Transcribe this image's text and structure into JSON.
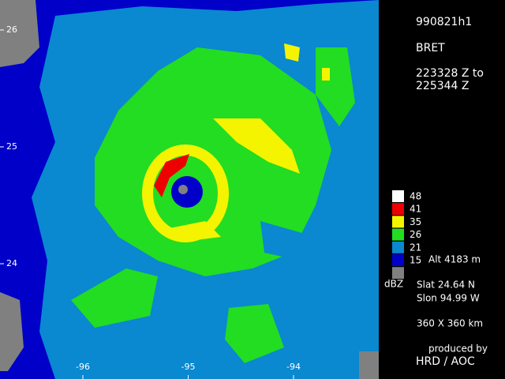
{
  "header": {
    "flight": "990821h1",
    "storm": "BRET",
    "time_start": "223328 Z to",
    "time_end": "225344 Z"
  },
  "legend": {
    "levels": [
      48,
      41,
      35,
      26,
      21,
      15
    ],
    "colors": [
      "#ffffff",
      "#ee0000",
      "#f4f400",
      "#22dd22",
      "#0a88d0",
      "#0000c8",
      "#808080"
    ],
    "unit": "dBZ",
    "altitude": "Alt  4183 m"
  },
  "info": {
    "slat": "Slat   24.64 N",
    "slon": "Slon   94.99 W",
    "domain_size": "360 X 360 km",
    "credit_line1": "produced by",
    "credit_line2": "HRD / AOC"
  },
  "axes": {
    "lat_ticks": [
      26,
      25,
      24
    ],
    "lon_ticks": [
      -96,
      -95,
      -94
    ]
  }
}
